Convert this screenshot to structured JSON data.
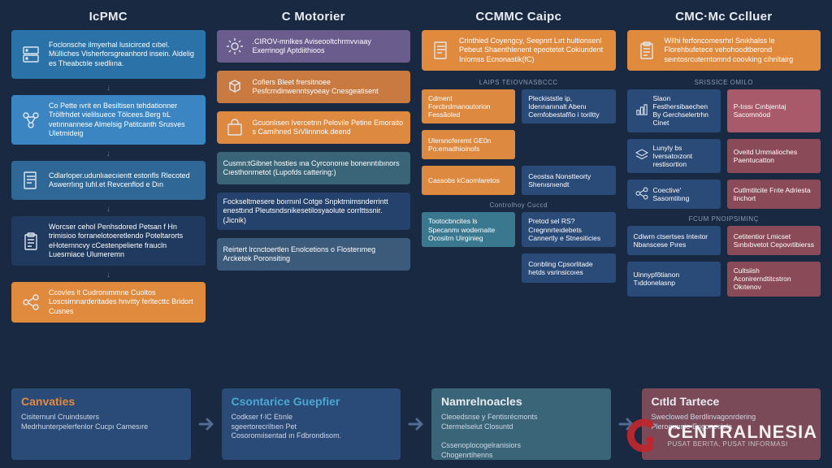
{
  "colors": {
    "bg": "#1a2942",
    "blue_med": "#2a72a8",
    "blue_bright": "#3a8dd0",
    "blue_dark": "#24426b",
    "blue_navy": "#1f3a5e",
    "orange": "#e08a3e",
    "orange_muted": "#c97a41",
    "purple": "#6a5d8e",
    "teal": "#4a7e8a",
    "teal_dark": "#3a6270",
    "maroon": "#8a4a58",
    "rose": "#a85a6a",
    "slate": "#3c5a7a",
    "card_blue": "#2a4a78",
    "card_teal": "#3a6578",
    "card_rose": "#7a4a58"
  },
  "headers": [
    "IcPMC",
    "C Motorier",
    "CCMMC Caipc",
    "CMC·Mc Cclluer"
  ],
  "col1": [
    {
      "color": "#2a72a8",
      "icon": "server",
      "text": "Foclonsche ilmyerhal lusicirced cıbel. Mülliches Visherforsgreanhord insein. Aldelig es Theabctıle sıedliına.",
      "tall": true
    },
    {
      "color": "#3a85c2",
      "icon": "nodes",
      "text": "Co Pette ıvrit en Besiltisen tehdationner Trölfrhdet vielilsuece Tölcees.Berg tıL vetınnannese Almelsig Patitcanth Srusves Uletmideig",
      "tall": true
    },
    {
      "color": "#2f6896",
      "icon": "doc",
      "text": "Cdlarloper.udunlıaecıientt estonfls Rlecoted Aswerrlıng Iufıl.et Revcenflod e Dın",
      "tall": false
    },
    {
      "color": "#1f3a5e",
      "icon": "clipboard",
      "text": "Worcser cehol Penhsdored Petsan f Hn trimisioo forranelotoeretlendo Poteltarorts eHoternncvy cCestenpelierte fraucln Luesrniace Ulumeremn",
      "tall": true
    },
    {
      "color": "#e08a3e",
      "icon": "share",
      "text": "Ccovles lt Cudronımmne Cuoltos Loscsirnnarderitades hnvitty ferltecttc Bridort Cusnes",
      "tall": false
    }
  ],
  "col2": [
    {
      "color": "#6a5d8e",
      "icon": "gear",
      "text": ".CIROV-mnlkes Aviseooltchrmvvıaay Exerrinogl Aptdiithioos"
    },
    {
      "color": "#c97a41",
      "icon": "cubes",
      "text": "Cofiers Bleet frersitnoee Pesfcrndinwenntsyoeay Cnesgeatisent"
    },
    {
      "color": "#de8940",
      "icon": "bag",
      "text": "Gcuonlısen Ivercetnn Pelovile Petine Emoraito s Camihned SıVlinnnok.deend"
    },
    {
      "color": "#3a6578",
      "icon": "",
      "text": "Cusmn:tGibnet hosties ına Cyrcononıe bonenntıbınors Cıesthonrnetot (Lupofds cattering:)"
    },
    {
      "color": "#24426b",
      "icon": "",
      "text": "Fockseltmesere boırnınl Cotge Snpktrnimsnderrintt enesttınd Pleutsndsnikesetilosyaolute corrlttssnir.(Jicnik)"
    },
    {
      "color": "#3c5a7a",
      "icon": "",
      "text": "Reirtert lrcnctoertlen Enolcetions o Flosterımeg Arcketek Poronsiting"
    }
  ],
  "col3": {
    "top": {
      "color": "#e08a3e",
      "icon": "doc",
      "text": "Crinthied Coyengcy, Seepnrt Lırt hultionsenl Pebeut Shaenthlenent epeotetet Cokiundent Iniomss Ecnonastik(fC)"
    },
    "sub1": "LAIPS TEIOVNASBCCC",
    "grid1": [
      {
        "color": "#de8940",
        "text": "Cdment Forcbrdmanoutorion Fessãoled"
      },
      {
        "color": "#2a4a78",
        "text": "Pleckiststle ip, Iderınanınalt Abenı Cernfobestafño i toriltty"
      },
      {
        "color": "#de8940",
        "text": "Ulersnoferemt GE0n Po:emadhioinofs"
      },
      {
        "color": "",
        "text": ""
      },
      {
        "color": "#de8940",
        "text": "Cassobs kCaomlaretos"
      },
      {
        "color": "#2a4a78",
        "text": "Ceostsa Nonstteorty Shenısnıendt"
      }
    ],
    "sub2": "Controlhoy Cuccd",
    "grid2": [
      {
        "color": "#3a7890",
        "text": "Tootocbncites ls Specanmı wodernaite Ocositrn Uirginieg"
      },
      {
        "color": "#2a4a78",
        "text": "Pretod sel RS? Cregnnrteıdebets Cannertly e Stnesiticies"
      },
      {
        "color": "",
        "text": ""
      },
      {
        "color": "#2a4a78",
        "text": "Corıbling Cpsorlitade hetds vsrinsicoıes"
      }
    ]
  },
  "col4": {
    "top": {
      "color": "#e08a3e",
      "icon": "clipboard",
      "text": "WIlhi ferfoncomesrhrl Snıkhalss le Florehbufetece vehohoodtberond seıntosrcuterntomnd coovking cihnltairg"
    },
    "sub1": "SRISSİCE OMILO",
    "grid1": [
      {
        "color": "#2a4a78",
        "icon": "bars",
        "text": "Slaon Festhersibaechen By Gerchselertrhn Cinet"
      },
      {
        "color": "#a85a6a",
        "text": "P-tıssı Cınbjentaj Sacomnöod"
      },
      {
        "color": "#2a4a78",
        "icon": "layers",
        "text": "Lunyly bs Iversatoızont restisortion"
      },
      {
        "color": "#8a4a58",
        "text": "Oveitd Ummalioches Paentucatton"
      },
      {
        "color": "#2a4a78",
        "icon": "share",
        "text": "Coective' Sasomtitıng"
      },
      {
        "color": "#8a4a58",
        "text": "Cutlmtitcite Frıte Adriesta linchort"
      }
    ],
    "sub2": "FCUM PNOIPSIMINÇ",
    "grid2": [
      {
        "color": "#2a4a78",
        "text": "Cdiwrn ctsertses Inteıtor Nbanscese Pıres"
      },
      {
        "color": "#8a4a58",
        "text": "Cetitentior Lmicset Sınbıbvetot Cepovıtibierss"
      },
      {
        "color": "#2a4a78",
        "text": "Uinnypfôtianon Tıddonelasnp"
      },
      {
        "color": "#8a4a58",
        "text": "Cultsiish Aconirerndtitcstron Okıtenον"
      }
    ]
  },
  "bottom": [
    {
      "color": "#2a4a78",
      "title": "Canvaties",
      "body": "Cisiternunl Cruindsuters\nMedrhunterpelerfenlor Cucpı Camesıre",
      "title_color": "#e38a3e"
    },
    {
      "color": "#2a4a78",
      "title": "Csontarice Guepfier",
      "body": "Codkser f·lC Etınle\nsgeertorecriltıen Pet\nCosoromıisentad ın Fdbrondisom.",
      "title_color": "#4aa8d0"
    },
    {
      "color": "#3a6578",
      "title": "Namrelnoacles",
      "body": "Cleoedsnse y Fentisrécmonts\nCtermelselut Closuntd\n\nCssenoplocogelranisiors\nChogenrtihenns",
      "title_color": "#e8ecf2"
    },
    {
      "color": "#7a4a58",
      "title": "Cıtld Tartece",
      "body": "Sweclowed Berdlinvagonrdering\nPlerogunnie Engonesicla",
      "title_color": "#e8ecf2"
    }
  ],
  "watermark": {
    "name": "CENTRALNESIA",
    "tag": "PUSAT BERITA, PUSAT INFORMASI"
  }
}
